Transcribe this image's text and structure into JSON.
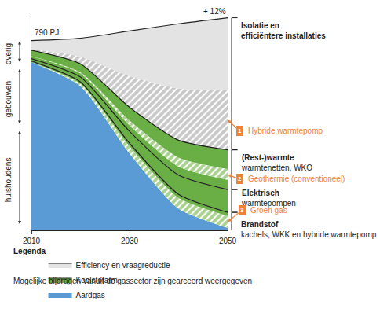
{
  "chart_data": {
    "type": "area",
    "stacked": true,
    "x": [
      2010,
      2020,
      2030,
      2040,
      2050
    ],
    "xlim": [
      2010,
      2050
    ],
    "xticks": [
      2010,
      2030,
      2050
    ],
    "ylim": [
      0,
      900
    ],
    "yticks": [],
    "tick_labels": "x",
    "grid": false,
    "legend": "bottom",
    "legend_title": "Legenda",
    "note": "Mogelijke bijdragen vanuit de gassector zijn gearceerd weergegeven",
    "start_total": {
      "value": 790,
      "label": "790 PJ"
    },
    "end_change": {
      "value": 12,
      "label": "+ 12%"
    },
    "sectors": [
      {
        "name": "huishoudens",
        "value": 417
      },
      {
        "name": "gebouwen",
        "value": 258
      },
      {
        "name": "overig",
        "value": 115
      }
    ],
    "groups": [
      {
        "title": [
          "Brandstof"
        ],
        "subtitle": "kachels, WKK en hybride warmtepomp",
        "series": [
          {
            "name": "Aardgas",
            "color": "#5b9bd5",
            "values": [
              700,
              600,
              320,
              90,
              10
            ]
          },
          {
            "name": "Groen gas",
            "number": 3,
            "color": "#a9d18e",
            "values": [
              0,
              10,
              30,
              45,
              50
            ]
          },
          {
            "name": "Koolstofarm",
            "color": "#6aaf45",
            "values": [
              5,
              8,
              12,
              15,
              15
            ]
          }
        ]
      },
      {
        "title": [
          "Elektrisch"
        ],
        "subtitle": "warmtepompen",
        "series": [
          {
            "name": "Koolstofarm",
            "color": "#6aaf45",
            "values": [
              10,
              20,
              50,
              80,
              95
            ]
          }
        ]
      },
      {
        "title": [
          "(Rest-)warmte"
        ],
        "subtitle": "warmtenetten, WKO",
        "series": [
          {
            "name": "Koolstofarm",
            "color": "#6aaf45",
            "values": [
              10,
              15,
              25,
              35,
              40
            ]
          },
          {
            "name": "Geothermie (conventioneel)",
            "number": 2,
            "color": "#a9d18e",
            "values": [
              0,
              5,
              20,
              38,
              45
            ]
          },
          {
            "name": "Koolstofarm",
            "color": "#6aaf45",
            "values": [
              25,
              35,
              55,
              72,
              80
            ]
          }
        ]
      },
      {
        "title": [
          "Isolatie en",
          "efficiëntere installaties"
        ],
        "series": [
          {
            "name": "Hybride warmtepomp",
            "number": 1,
            "color": "#c8c8c8",
            "values": [
              5,
              30,
              130,
              215,
              250
            ]
          },
          {
            "name": "Efficiency en vraagreductie",
            "color": "#e3e3e3",
            "values": [
              35,
              77,
              188,
              270,
              300
            ]
          }
        ]
      }
    ]
  }
}
